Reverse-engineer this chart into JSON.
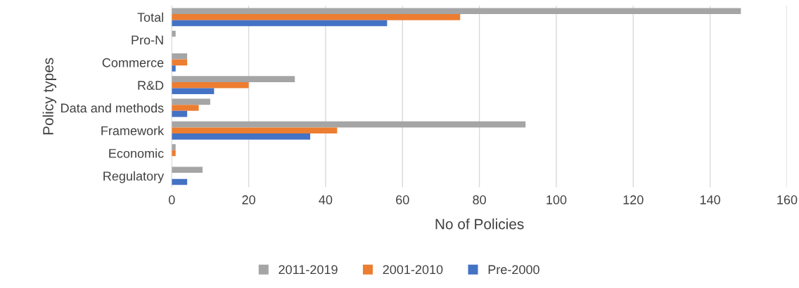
{
  "chart_data": {
    "type": "bar",
    "orientation": "horizontal",
    "xlabel": "No of Policies",
    "ylabel": "Policy types",
    "categories": [
      "Total",
      "Pro-N",
      "Commerce",
      "R&D",
      "Data and methods",
      "Framework",
      "Economic",
      "Regulatory"
    ],
    "series": [
      {
        "name": "2011-2019",
        "color": "#a5a5a5",
        "values": [
          148,
          1,
          4,
          32,
          10,
          92,
          1,
          8
        ]
      },
      {
        "name": "2001-2010",
        "color": "#ed7d31",
        "values": [
          75,
          0,
          4,
          20,
          7,
          43,
          1,
          0
        ]
      },
      {
        "name": "Pre-2000",
        "color": "#4472c4",
        "values": [
          56,
          0,
          1,
          11,
          4,
          36,
          0,
          4
        ]
      }
    ],
    "xlim": [
      0,
      160
    ],
    "xticks": [
      0,
      20,
      40,
      60,
      80,
      100,
      120,
      140,
      160
    ],
    "grid": "x",
    "legend": "bottom"
  }
}
